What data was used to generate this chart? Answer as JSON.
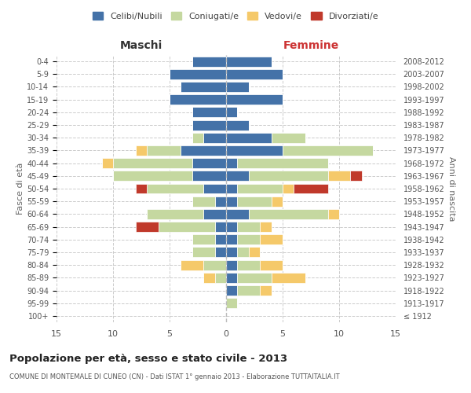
{
  "age_groups": [
    "100+",
    "95-99",
    "90-94",
    "85-89",
    "80-84",
    "75-79",
    "70-74",
    "65-69",
    "60-64",
    "55-59",
    "50-54",
    "45-49",
    "40-44",
    "35-39",
    "30-34",
    "25-29",
    "20-24",
    "15-19",
    "10-14",
    "5-9",
    "0-4"
  ],
  "birth_years": [
    "≤ 1912",
    "1913-1917",
    "1918-1922",
    "1923-1927",
    "1928-1932",
    "1933-1937",
    "1938-1942",
    "1943-1947",
    "1948-1952",
    "1953-1957",
    "1958-1962",
    "1963-1967",
    "1968-1972",
    "1973-1977",
    "1978-1982",
    "1983-1987",
    "1988-1992",
    "1993-1997",
    "1998-2002",
    "2003-2007",
    "2008-2012"
  ],
  "maschi": {
    "celibi": [
      0,
      0,
      0,
      0,
      0,
      1,
      1,
      1,
      2,
      1,
      2,
      3,
      3,
      4,
      2,
      3,
      3,
      5,
      4,
      5,
      3
    ],
    "coniugati": [
      0,
      0,
      0,
      1,
      2,
      2,
      2,
      5,
      5,
      2,
      5,
      7,
      7,
      3,
      1,
      0,
      0,
      0,
      0,
      0,
      0
    ],
    "vedovi": [
      0,
      0,
      0,
      1,
      2,
      0,
      0,
      0,
      0,
      0,
      0,
      0,
      1,
      1,
      0,
      0,
      0,
      0,
      0,
      0,
      0
    ],
    "divorziati": [
      0,
      0,
      0,
      0,
      0,
      0,
      0,
      2,
      0,
      0,
      1,
      0,
      0,
      0,
      0,
      0,
      0,
      0,
      0,
      0,
      0
    ]
  },
  "femmine": {
    "celibi": [
      0,
      0,
      1,
      1,
      1,
      1,
      1,
      1,
      2,
      1,
      1,
      2,
      1,
      5,
      4,
      2,
      1,
      5,
      2,
      5,
      4
    ],
    "coniugati": [
      0,
      1,
      2,
      3,
      2,
      1,
      2,
      2,
      7,
      3,
      4,
      7,
      8,
      8,
      3,
      0,
      0,
      0,
      0,
      0,
      0
    ],
    "vedovi": [
      0,
      0,
      1,
      3,
      2,
      1,
      2,
      1,
      1,
      1,
      1,
      2,
      0,
      0,
      0,
      0,
      0,
      0,
      0,
      0,
      0
    ],
    "divorziati": [
      0,
      0,
      0,
      0,
      0,
      0,
      0,
      0,
      0,
      0,
      3,
      1,
      0,
      0,
      0,
      0,
      0,
      0,
      0,
      0,
      0
    ]
  },
  "colors": {
    "celibi": "#4472a8",
    "coniugati": "#c5d8a0",
    "vedovi": "#f5c96a",
    "divorziati": "#c0392b"
  },
  "legend_labels": [
    "Celibi/Nubili",
    "Coniugati/e",
    "Vedovi/e",
    "Divorziati/e"
  ],
  "title": "Popolazione per età, sesso e stato civile - 2013",
  "subtitle": "COMUNE DI MONTEMALE DI CUNEO (CN) - Dati ISTAT 1° gennaio 2013 - Elaborazione TUTTAITALIA.IT",
  "ylabel_left": "Fasce di età",
  "ylabel_right": "Anni di nascita",
  "xlabel_left": "Maschi",
  "xlabel_right": "Femmine",
  "xlim": 15,
  "bg_color": "#ffffff",
  "grid_color": "#cccccc"
}
